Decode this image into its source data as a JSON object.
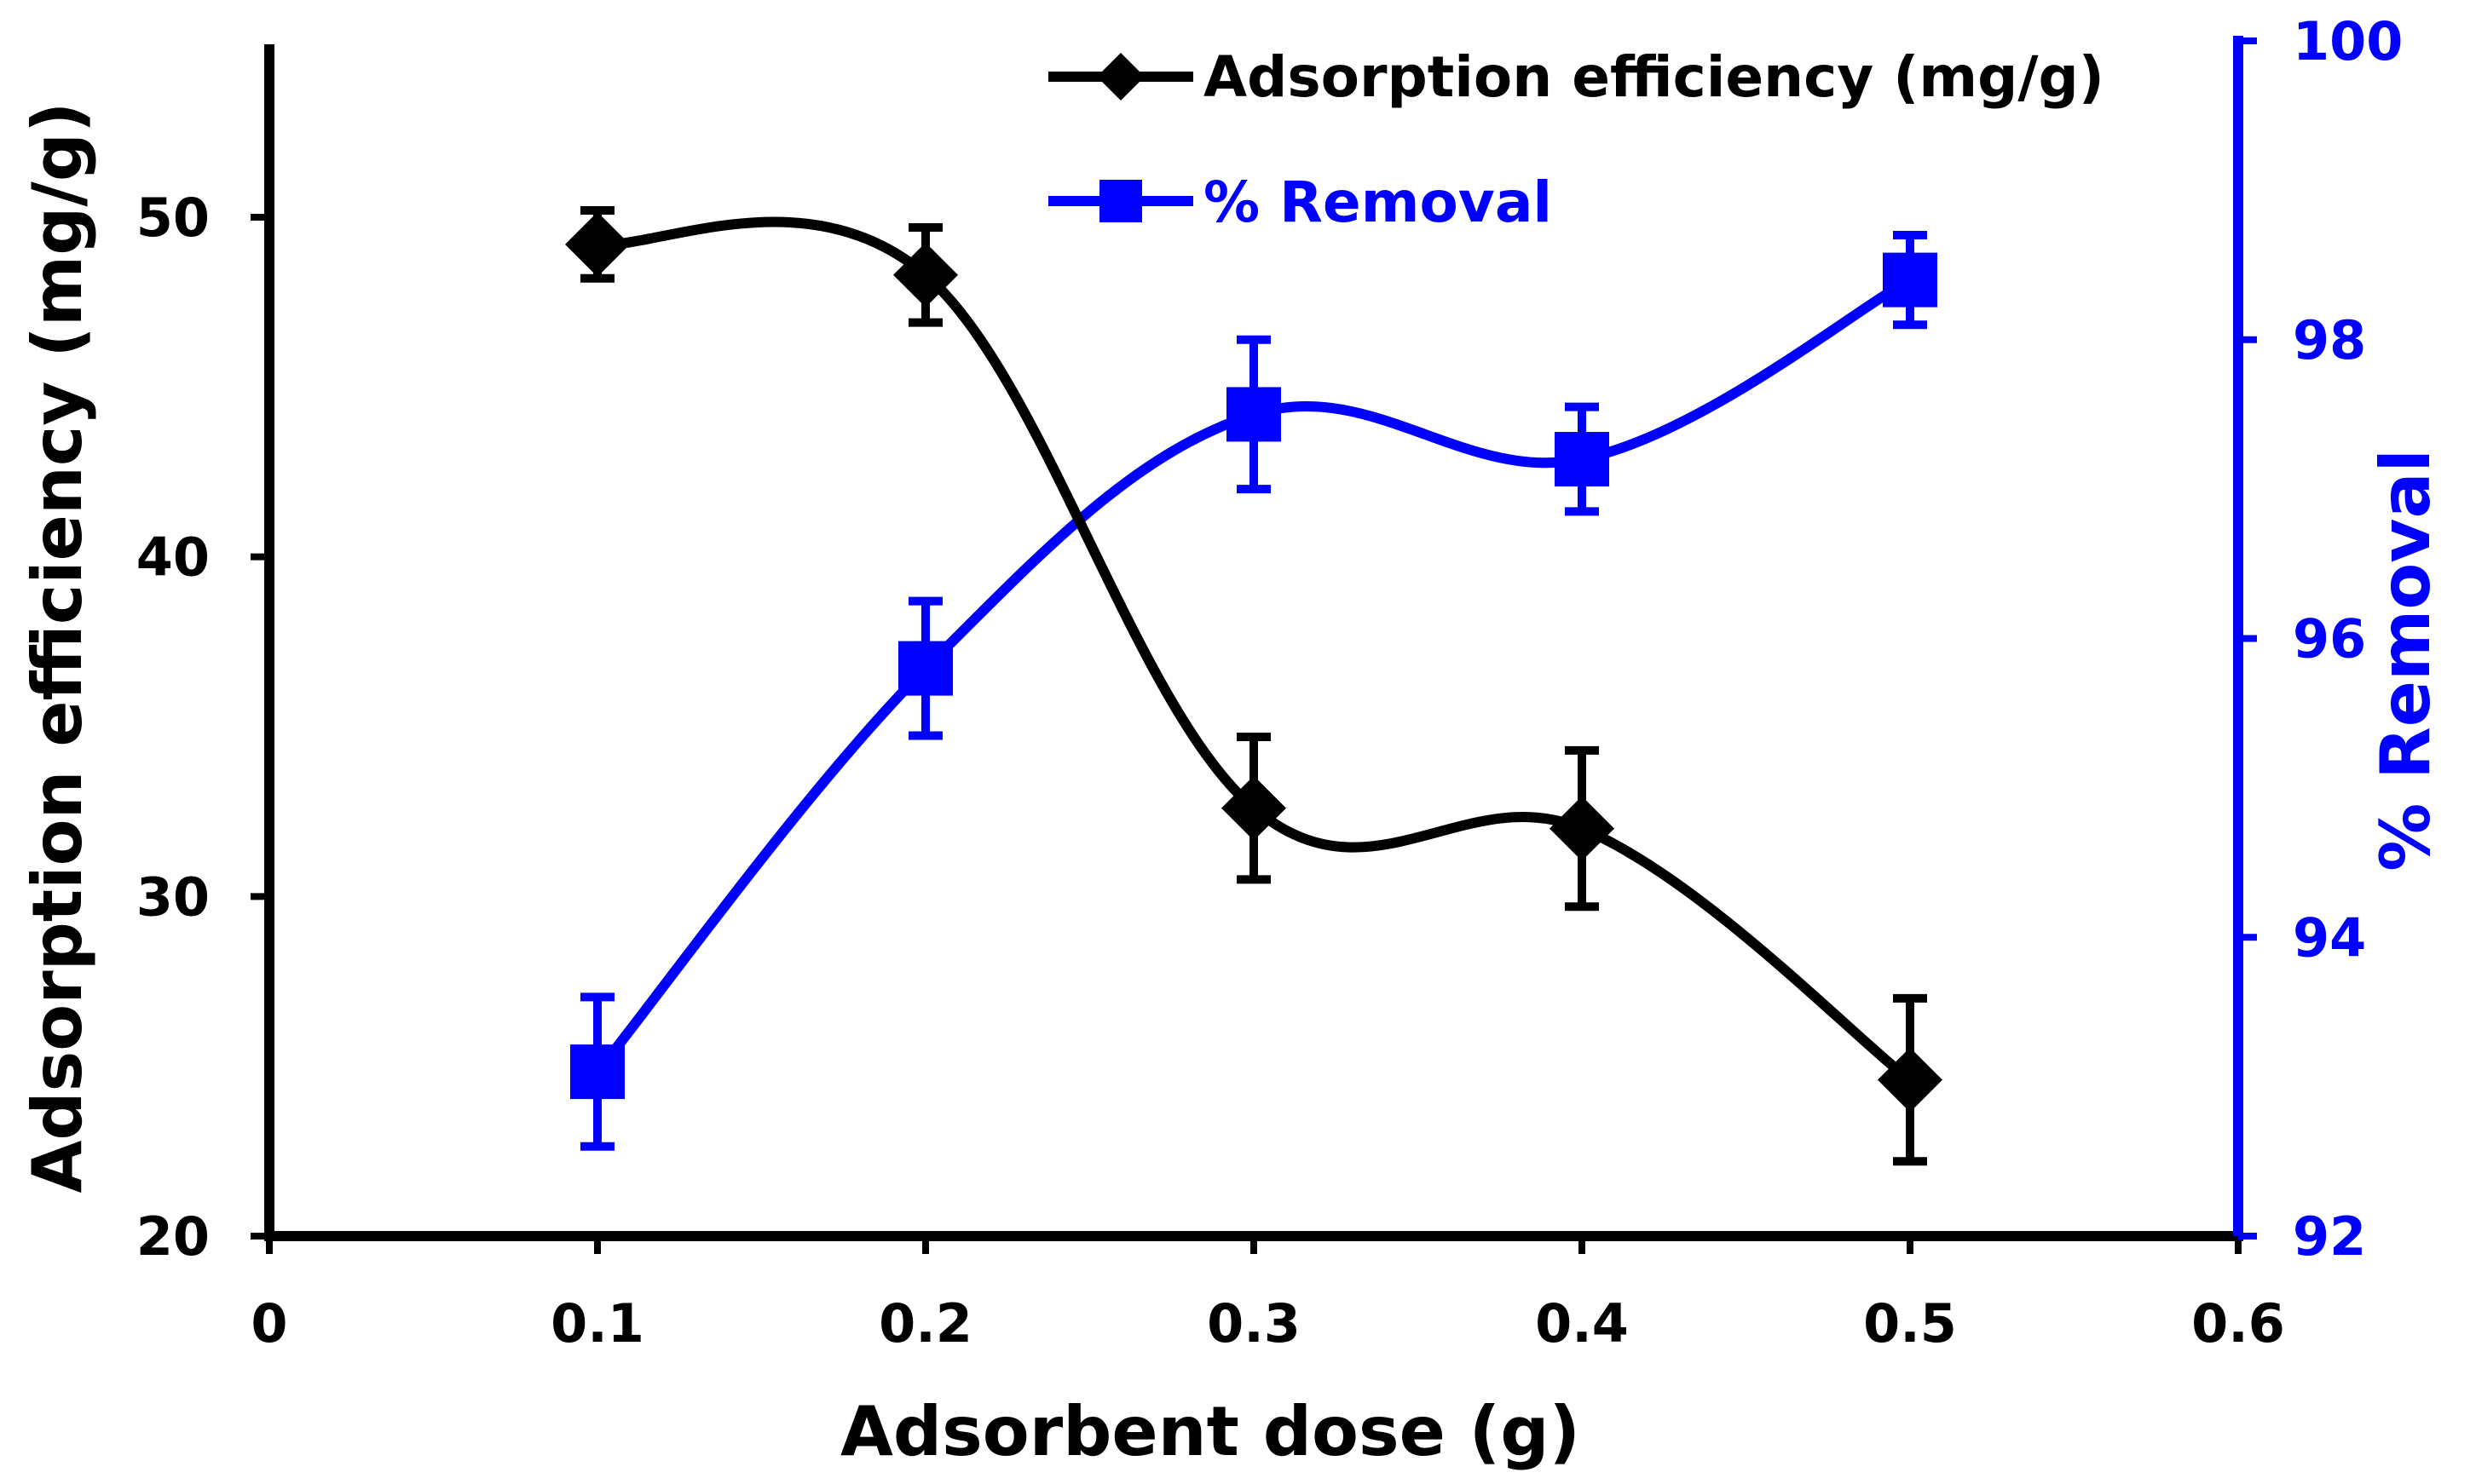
{
  "chart_data": {
    "type": "line",
    "xlabel": "Adsorbent dose (g)",
    "ylabel_left": "Adsorption efficiency (mg/g)",
    "ylabel_right": "% Removal",
    "xlim": [
      0,
      0.6
    ],
    "ylim_left": [
      20,
      55
    ],
    "ylim_right": [
      92,
      100
    ],
    "x_ticks": [
      "0",
      "0.1",
      "0.2",
      "0.3",
      "0.4",
      "0.5",
      "0.6"
    ],
    "left_ticks": [
      "20",
      "30",
      "40",
      "50"
    ],
    "right_ticks": [
      "92",
      "94",
      "96",
      "98",
      "100"
    ],
    "series": [
      {
        "name": "Adsorption efficiency (mg/g)",
        "axis": "left",
        "color": "#000000",
        "marker": "diamond",
        "x": [
          0.1,
          0.2,
          0.3,
          0.4,
          0.5
        ],
        "values": [
          49.2,
          48.3,
          32.6,
          32.0,
          24.6
        ],
        "errors": [
          1.0,
          1.4,
          2.1,
          2.3,
          2.4
        ]
      },
      {
        "name": "% Removal",
        "axis": "right",
        "color": "#0000ff",
        "marker": "square",
        "x": [
          0.1,
          0.2,
          0.3,
          0.4,
          0.5
        ],
        "values": [
          93.1,
          95.8,
          97.5,
          97.2,
          98.4
        ],
        "errors": [
          0.5,
          0.45,
          0.5,
          0.35,
          0.3
        ]
      }
    ],
    "legend": {
      "position": "top-right"
    }
  }
}
